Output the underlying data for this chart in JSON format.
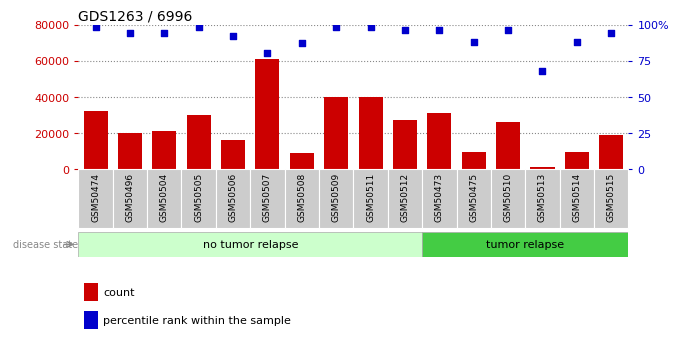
{
  "title": "GDS1263 / 6996",
  "categories": [
    "GSM50474",
    "GSM50496",
    "GSM50504",
    "GSM50505",
    "GSM50506",
    "GSM50507",
    "GSM50508",
    "GSM50509",
    "GSM50511",
    "GSM50512",
    "GSM50473",
    "GSM50475",
    "GSM50510",
    "GSM50513",
    "GSM50514",
    "GSM50515"
  ],
  "counts": [
    32000,
    20000,
    21000,
    30000,
    16000,
    61000,
    9000,
    40000,
    40000,
    27000,
    31000,
    9500,
    26000,
    1500,
    9500,
    19000
  ],
  "percentile_ranks": [
    98,
    94,
    94,
    98,
    92,
    80,
    87,
    98,
    98,
    96,
    96,
    88,
    96,
    68,
    88,
    94
  ],
  "bar_color": "#cc0000",
  "dot_color": "#0000cc",
  "left_ylim": [
    0,
    80000
  ],
  "right_ylim": [
    0,
    100
  ],
  "left_yticks": [
    0,
    20000,
    40000,
    60000,
    80000
  ],
  "right_yticks": [
    0,
    25,
    50,
    75,
    100
  ],
  "right_yticklabels": [
    "0",
    "25",
    "50",
    "75",
    "100%"
  ],
  "no_tumor_count": 10,
  "tumor_count": 6,
  "group1_label": "no tumor relapse",
  "group2_label": "tumor relapse",
  "disease_state_label": "disease state",
  "legend_count_label": "count",
  "legend_pct_label": "percentile rank within the sample",
  "bg_color": "#ffffff",
  "tick_bg_color": "#cccccc",
  "group1_color": "#ccffcc",
  "group2_color": "#44cc44",
  "dotted_grid_color": "#888888"
}
